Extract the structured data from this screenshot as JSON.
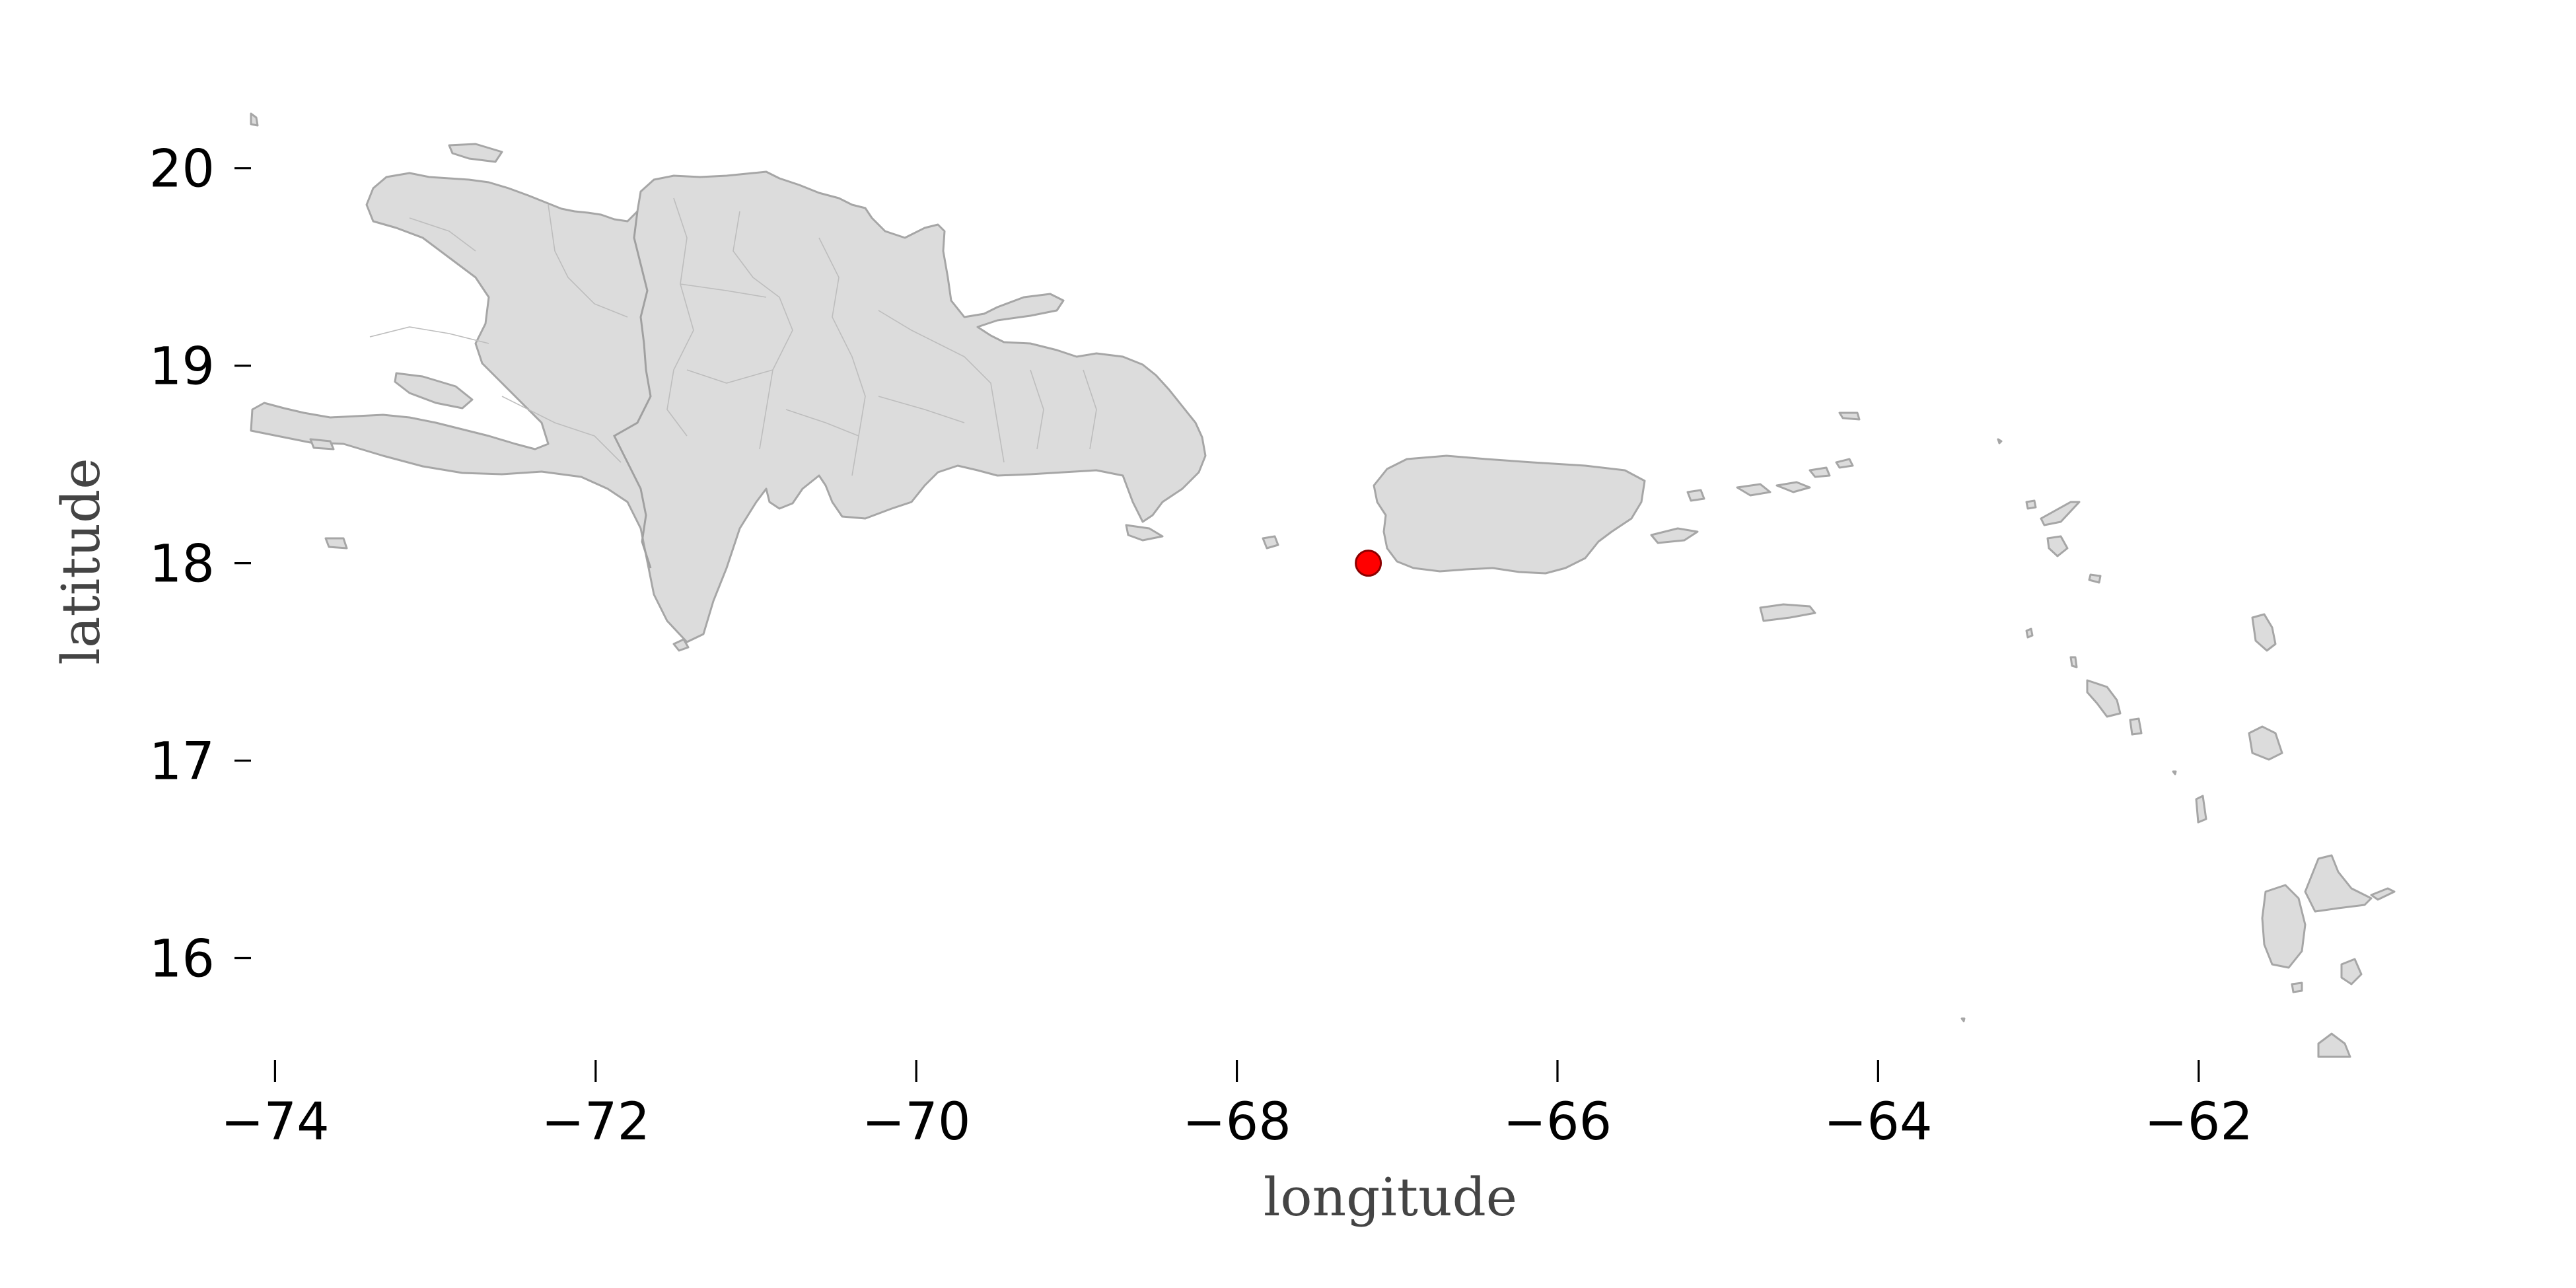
{
  "chart_data": {
    "type": "scatter",
    "xlabel": "longitude",
    "ylabel": "latitude",
    "xlim": [
      -74.15,
      -60.8
    ],
    "ylim": [
      15.5,
      20.3
    ],
    "x_ticks": [
      -74,
      -72,
      -70,
      -68,
      -66,
      -64,
      -62
    ],
    "y_ticks": [
      16,
      17,
      18,
      19,
      20
    ],
    "x_tick_labels": [
      "−74",
      "−72",
      "−70",
      "−68",
      "−66",
      "−64",
      "−62"
    ],
    "y_tick_labels": [
      "16",
      "17",
      "18",
      "19",
      "20"
    ],
    "grid": false,
    "basemap": "Caribbean land masses (Hispaniola, Puerto Rico, Virgin Islands, Leeward Islands)",
    "land_color": "#dcdcdc",
    "land_edge_color": "#a6a6a6",
    "points": [
      {
        "x": -67.18,
        "y": 18.0,
        "color": "#ff0000"
      }
    ]
  }
}
